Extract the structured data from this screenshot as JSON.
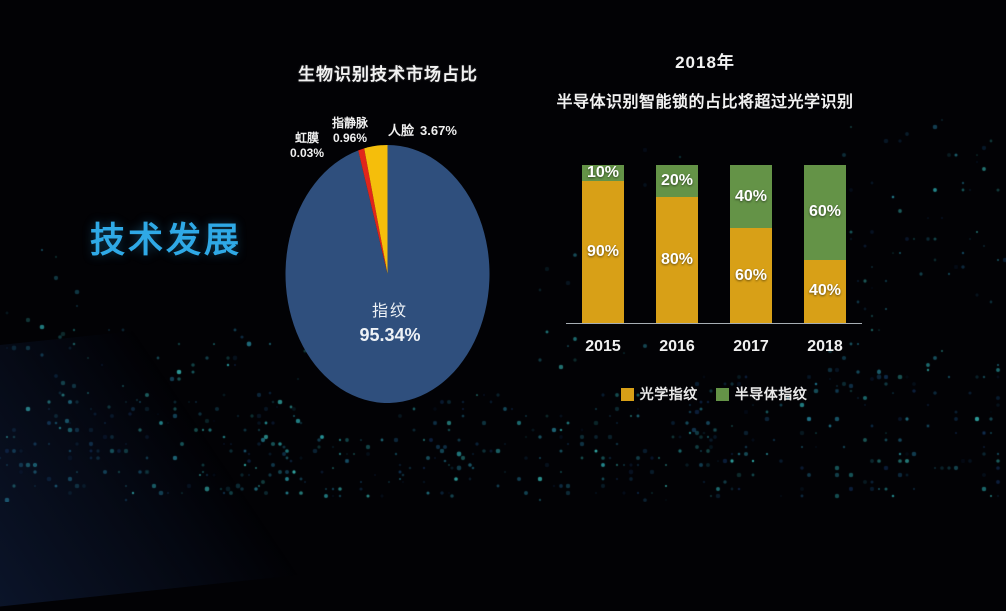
{
  "slide": {
    "section_label": "技术发展",
    "accent_color": "#2FA9E6",
    "background_color": "#020205"
  },
  "chart_data": [
    {
      "type": "pie",
      "title": "生物识别技术市场占比",
      "start_angle_deg": -90,
      "direction": "clockwise",
      "slices": [
        {
          "label": "指纹",
          "value": 95.34,
          "display": "95.34%",
          "color": "#2F4F7D",
          "label_position": "inside"
        },
        {
          "label": "虹膜",
          "value": 0.03,
          "display": "0.03%",
          "color": "#8a8a8a",
          "label_position": "outside"
        },
        {
          "label": "指静脉",
          "value": 0.96,
          "display": "0.96%",
          "color": "#E1251B",
          "label_position": "outside"
        },
        {
          "label": "人脸",
          "value": 3.67,
          "display": "3.67%",
          "color": "#F5BE0B",
          "label_position": "outside"
        }
      ]
    },
    {
      "type": "bar",
      "subtype": "stacked-100",
      "title": "2018年",
      "subtitle": "半导体识别智能锁的占比将超过光学识别",
      "categories": [
        "2015",
        "2016",
        "2017",
        "2018"
      ],
      "series": [
        {
          "name": "光学指纹",
          "color": "#D8A017",
          "values": [
            90,
            80,
            60,
            40
          ]
        },
        {
          "name": "半导体指纹",
          "color": "#649347",
          "values": [
            10,
            20,
            40,
            60
          ]
        }
      ],
      "value_suffix": "%",
      "ylim": [
        0,
        100
      ],
      "grid": false,
      "legend_position": "bottom"
    }
  ]
}
